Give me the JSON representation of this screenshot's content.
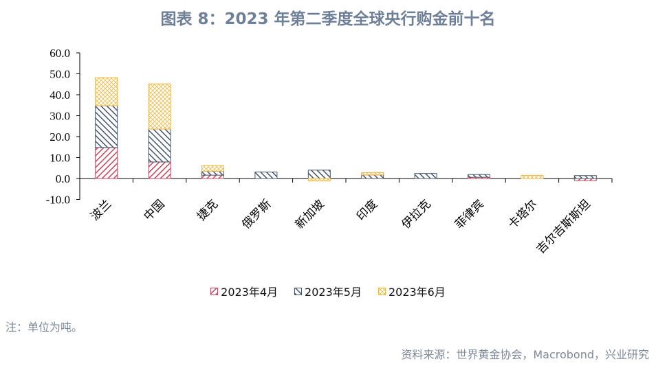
{
  "header": {
    "title": "图表 8：2023 年第二季度全球央行购金前十名"
  },
  "footer": {
    "note": "注：单位为吨。",
    "source": "资料来源：世界黄金协会，Macrobond，兴业研究"
  },
  "colors": {
    "apr": "#C4455C",
    "may": "#44546A",
    "jun": "#F0B840",
    "title": "#6E7F98"
  },
  "chart_data": {
    "type": "bar",
    "stacked": true,
    "title": "图表 8：2023 年第二季度全球央行购金前十名",
    "xlabel": "",
    "ylabel": "",
    "ylim": [
      -10,
      60
    ],
    "yticks": [
      "60.0",
      "50.0",
      "40.0",
      "30.0",
      "20.0",
      "10.0",
      "0.0",
      "-10.0"
    ],
    "categories": [
      "波兰",
      "中国",
      "捷克",
      "俄罗斯",
      "新加坡",
      "印度",
      "伊拉克",
      "菲律宾",
      "卡塔尔",
      "吉尔吉斯斯坦"
    ],
    "series": [
      {
        "name": "2023年4月",
        "values": [
          14.8,
          7.9,
          1.6,
          0.0,
          0.0,
          0.0,
          0.0,
          0.6,
          0.0,
          -1.0
        ]
      },
      {
        "name": "2023年5月",
        "values": [
          20.0,
          15.7,
          1.9,
          3.1,
          4.0,
          1.7,
          2.4,
          1.3,
          0.0,
          1.4
        ]
      },
      {
        "name": "2023年6月",
        "values": [
          13.4,
          21.6,
          2.7,
          0.0,
          -1.2,
          1.1,
          0.0,
          0.0,
          1.5,
          0.0
        ]
      }
    ],
    "legend_position": "bottom",
    "grid": false
  }
}
